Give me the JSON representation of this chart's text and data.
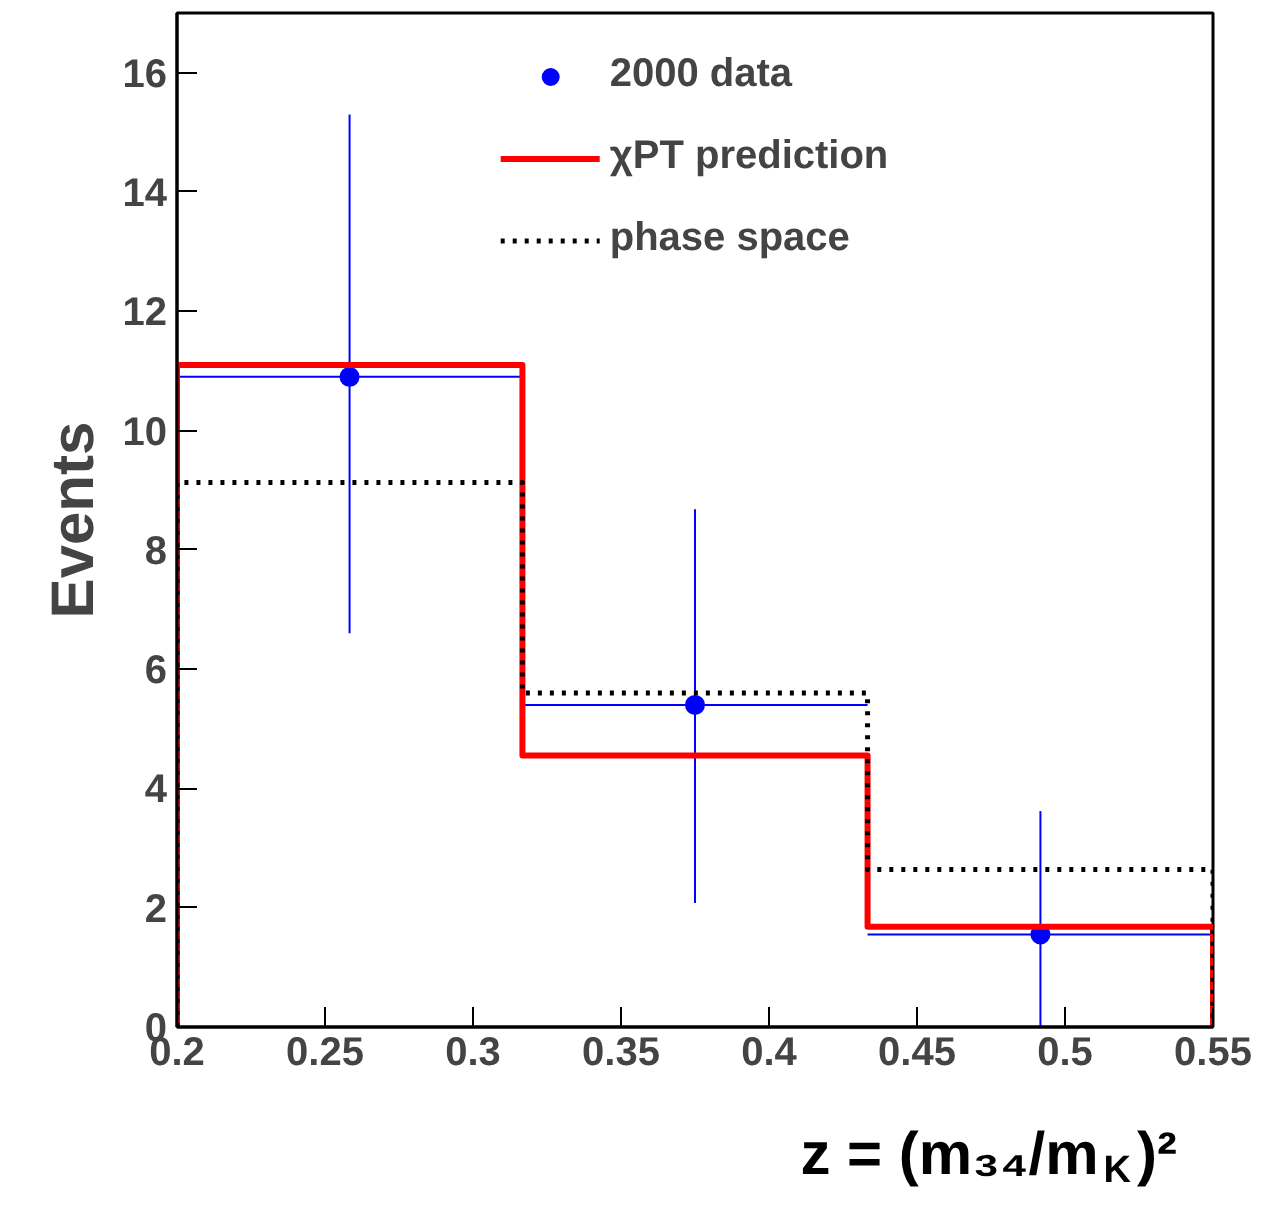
{
  "chart_data": {
    "type": "histogram",
    "xlabel": "z = (m₃₄/m$_{K}$)²",
    "ylabel": "Events",
    "bins": [
      0.2,
      0.3167,
      0.4333,
      0.55
    ],
    "xlim": [
      0.2,
      0.55
    ],
    "xticks": [
      0.2,
      0.25,
      0.3,
      0.35,
      0.4,
      0.45,
      0.5,
      0.55
    ],
    "ylim": [
      0,
      17
    ],
    "yticks": [
      0,
      2,
      4,
      6,
      8,
      10,
      12,
      14,
      16
    ],
    "grid": false,
    "legend": "top",
    "series": [
      {
        "name": "2000 data",
        "type": "scatter",
        "color": "#0000ff",
        "marker": "circle",
        "x": [
          0.2583,
          0.375,
          0.4917
        ],
        "values": [
          10.9,
          5.4,
          1.55
        ],
        "errors": [
          [
            6.6,
            15.3
          ],
          [
            2.08,
            8.68
          ],
          [
            0,
            3.62
          ]
        ],
        "xerrors": [
          [
            0.2,
            0.3167
          ],
          [
            0.3167,
            0.4333
          ],
          [
            0.4333,
            0.55
          ]
        ]
      },
      {
        "name": "χPT prediction",
        "color": "#ff0000",
        "line_style": "solid",
        "values": [
          11.1,
          4.55,
          1.68
        ]
      },
      {
        "name": "phase space",
        "color": "#000000",
        "line_style": "dotted",
        "values": [
          9.13,
          5.6,
          2.64
        ]
      }
    ]
  }
}
